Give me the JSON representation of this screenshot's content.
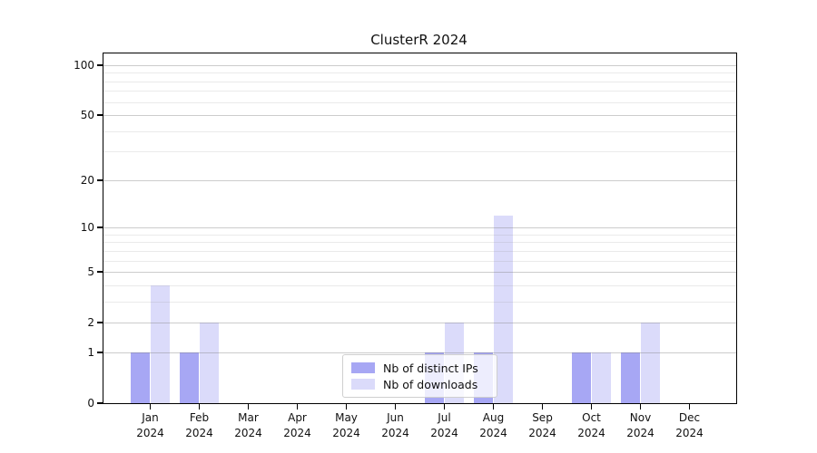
{
  "chart_data": {
    "type": "bar",
    "title": "ClusterR 2024",
    "x": {
      "months": [
        "Jan",
        "Feb",
        "Mar",
        "Apr",
        "May",
        "Jun",
        "Jul",
        "Aug",
        "Sep",
        "Oct",
        "Nov",
        "Dec"
      ],
      "year": "2024"
    },
    "categories": [
      "Jan 2024",
      "Feb 2024",
      "Mar 2024",
      "Apr 2024",
      "May 2024",
      "Jun 2024",
      "Jul 2024",
      "Aug 2024",
      "Sep 2024",
      "Oct 2024",
      "Nov 2024",
      "Dec 2024"
    ],
    "series": [
      {
        "name": "Nb of distinct IPs",
        "color": "#a7a7f4",
        "values": [
          1,
          1,
          0,
          0,
          0,
          0,
          1,
          1,
          0,
          1,
          1,
          0
        ]
      },
      {
        "name": "Nb of downloads",
        "color": "#dbdbfa",
        "values": [
          4,
          2,
          0,
          0,
          0,
          0,
          2,
          12,
          0,
          1,
          2,
          0
        ]
      }
    ],
    "yscale": "log10(1+y)",
    "yticks": [
      0,
      1,
      2,
      5,
      10,
      20,
      50,
      100
    ],
    "yticks_minor": [
      3,
      4,
      6,
      7,
      8,
      9,
      30,
      40,
      60,
      70,
      80,
      90
    ],
    "ylim": [
      0,
      117
    ],
    "grid": true,
    "legend_position": "lower center"
  },
  "colors": {
    "background": "#ffffff",
    "spine": "#000000",
    "text": "#111111",
    "grid_major": "#c9c9c9",
    "grid_minor": "#e7e7e7",
    "legend_border": "#cfcfcf",
    "series_dark": "#a7a7f4",
    "series_light": "#dbdbfa"
  }
}
